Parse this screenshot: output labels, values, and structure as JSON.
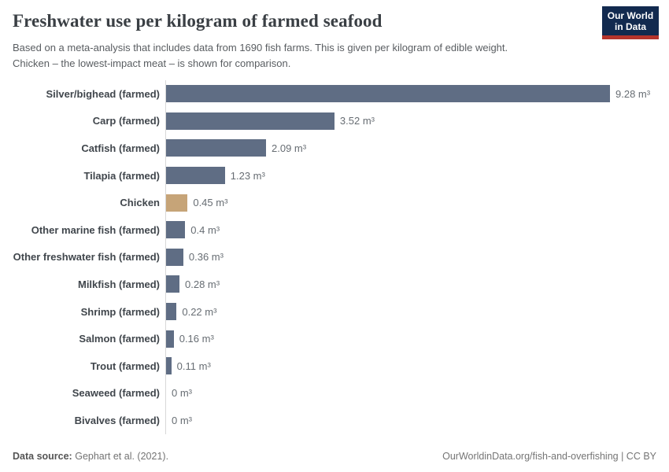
{
  "header": {
    "title": "Freshwater use per kilogram of farmed seafood",
    "subtitle_line1": "Based on a meta-analysis that includes data from 1690 fish farms. This is given per kilogram of edible weight.",
    "subtitle_line2": "Chicken – the lowest-impact meat – is shown for comparison.",
    "logo": {
      "line1": "Our World",
      "line2": "in Data",
      "bg_color": "#122a4f",
      "accent_color": "#b5342c"
    }
  },
  "chart_data": {
    "type": "bar",
    "orientation": "horizontal",
    "title": "Freshwater use per kilogram of farmed seafood",
    "xlabel": "",
    "ylabel": "",
    "unit": "m³",
    "xlim": [
      0,
      9.28
    ],
    "grid": false,
    "legend": "none",
    "bar_color": "#5f6d84",
    "highlight_category": "Chicken",
    "highlight_color": "#c6a478",
    "axis_line_color": "#d8d8d8",
    "categories": [
      "Silver/bighead (farmed)",
      "Carp (farmed)",
      "Catfish (farmed)",
      "Tilapia (farmed)",
      "Chicken",
      "Other marine fish (farmed)",
      "Other freshwater fish (farmed)",
      "Milkfish (farmed)",
      "Shrimp (farmed)",
      "Salmon (farmed)",
      "Trout (farmed)",
      "Seaweed (farmed)",
      "Bivalves (farmed)"
    ],
    "values": [
      9.28,
      3.52,
      2.09,
      1.23,
      0.45,
      0.4,
      0.36,
      0.28,
      0.22,
      0.16,
      0.11,
      0,
      0
    ],
    "value_labels": [
      "9.28 m³",
      "3.52 m³",
      "2.09 m³",
      "1.23 m³",
      "0.45 m³",
      "0.4 m³",
      "0.36 m³",
      "0.28 m³",
      "0.22 m³",
      "0.16 m³",
      "0.11 m³",
      "0 m³",
      "0 m³"
    ]
  },
  "footer": {
    "datasource_label": "Data source:",
    "datasource_value": "Gephart et al. (2021).",
    "attribution": "OurWorldinData.org/fish-and-overfishing | CC BY"
  }
}
